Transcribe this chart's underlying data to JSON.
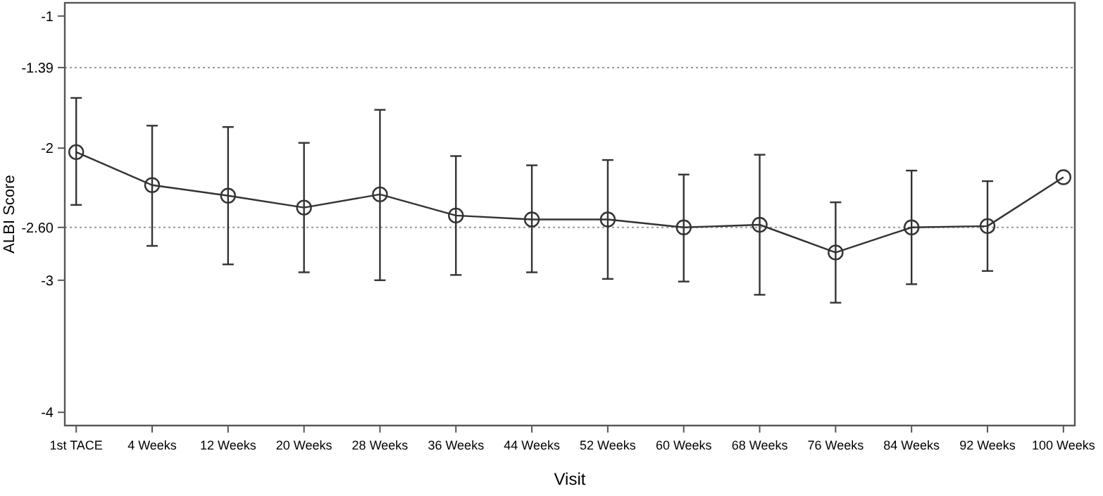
{
  "chart_data": {
    "type": "line",
    "xlabel": "Visit",
    "ylabel": "ALBI Score",
    "categories": [
      "1st TACE",
      "4 Weeks",
      "12 Weeks",
      "20 Weeks",
      "28 Weeks",
      "36 Weeks",
      "44 Weeks",
      "52 Weeks",
      "60 Weeks",
      "68 Weeks",
      "76 Weeks",
      "84 Weeks",
      "92 Weeks",
      "100 Weeks"
    ],
    "series": [
      {
        "color": "#333333",
        "values": [
          -2.03,
          -2.28,
          -2.36,
          -2.45,
          -2.35,
          -2.51,
          -2.54,
          -2.54,
          -2.6,
          -2.58,
          -2.79,
          -2.6,
          -2.59,
          -2.22
        ],
        "errors": [
          [
            -2.43,
            -1.62
          ],
          [
            -2.74,
            -1.83
          ],
          [
            -2.88,
            -1.84
          ],
          [
            -2.94,
            -1.96
          ],
          [
            -3.0,
            -1.71
          ],
          [
            -2.96,
            -2.06
          ],
          [
            -2.94,
            -2.13
          ],
          [
            -2.99,
            -2.09
          ],
          [
            -3.01,
            -2.2
          ],
          [
            -3.11,
            -2.05
          ],
          [
            -3.17,
            -2.41
          ],
          [
            -3.03,
            -2.17
          ],
          [
            -2.93,
            -2.25
          ],
          null
        ]
      }
    ],
    "ylim": [
      -4.1,
      -0.9
    ],
    "yticks": [
      -1,
      {
        "value": -1.39,
        "label": "-1.39"
      },
      -2,
      {
        "value": -2.6,
        "label": "-2.60"
      },
      -3,
      -4
    ],
    "ref_lines": [
      {
        "axis": "y",
        "value": -1.39,
        "line_style": "dotted",
        "color": "#999999"
      },
      {
        "axis": "y",
        "value": -2.6,
        "line_style": "dotted",
        "color": "#999999"
      }
    ],
    "grid": false,
    "marker": "circle",
    "line_style": "solid"
  }
}
